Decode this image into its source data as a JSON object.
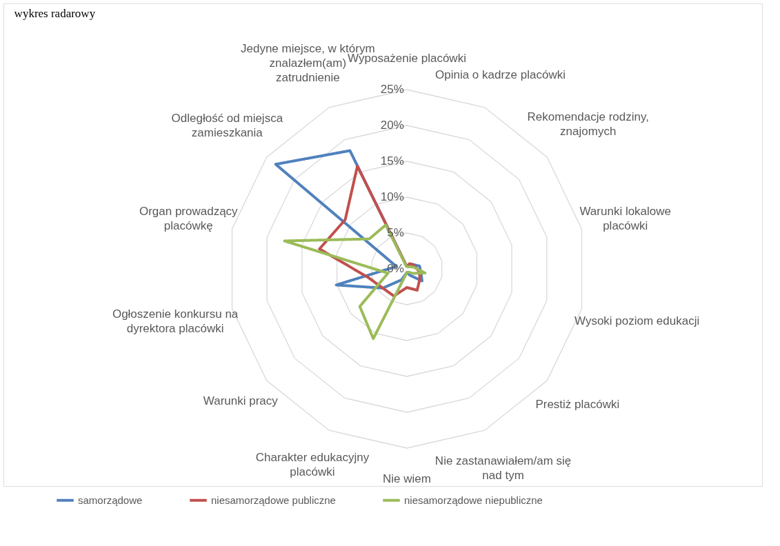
{
  "chart_data": {
    "type": "radar",
    "annotations": [
      "wykres radarowy"
    ],
    "categories": [
      "Wyposażenie placówki",
      "Opinia o kadrze placówki",
      "Rekomendacje rodziny, znajomych",
      "Warunki lokalowe placówki",
      "Wysoki poziom edukacji",
      "Prestiż placówki",
      "Nie zastanawiałem/am się nad tym",
      "Nie wiem",
      "Charakter edukacyjny placówki",
      "Warunki pracy",
      "Ogłoszenie konkursu na dyrektora placówki",
      "Organ prowadzący placówkę",
      "Odległość od miejsca zamieszkania",
      "Jedyne miejsce, w którym znalazłem(am) zatrudnienie"
    ],
    "series": [
      {
        "name": "samorządowe",
        "color": "#4f81bd",
        "values": [
          0.3,
          0.5,
          1.0,
          1.8,
          2.0,
          2.7,
          1.0,
          0.5,
          1.7,
          4.3,
          10.1,
          1.5,
          23.4,
          18.3
        ]
      },
      {
        "name": "niesamorządowe publiczne",
        "color": "#c0504d",
        "values": [
          0.3,
          0.8,
          1.0,
          1.2,
          1.8,
          2.3,
          3.3,
          2.6,
          4.2,
          4.3,
          5.5,
          12.5,
          11.0,
          15.9
        ]
      },
      {
        "name": "niesamorządowe niepubliczne",
        "color": "#9bbb59",
        "values": [
          0.2,
          0.3,
          0.5,
          1.0,
          2.6,
          1.0,
          0.5,
          0.5,
          10.8,
          8.4,
          2.7,
          17.5,
          6.7,
          6.8
        ]
      }
    ],
    "ylim": [
      0,
      25
    ],
    "yticks": [
      {
        "value": 0,
        "label": "0%"
      },
      {
        "value": 5,
        "label": "5%"
      },
      {
        "value": 10,
        "label": "10%"
      },
      {
        "value": 15,
        "label": "15%"
      },
      {
        "value": 20,
        "label": "20%"
      },
      {
        "value": 25,
        "label": "25%"
      }
    ],
    "grid": true,
    "legend": "bottom",
    "marker": "none",
    "line_style": "solid"
  }
}
